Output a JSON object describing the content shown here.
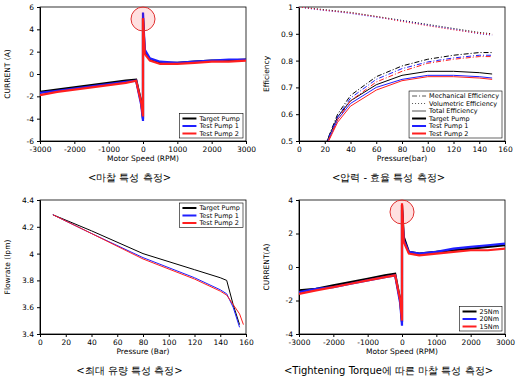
{
  "chart_data": [
    {
      "type": "line",
      "title": "<마찰 특성 측정>",
      "x_label": "Motor Speed (RPM)",
      "y_label": "CURRENT (A)",
      "x": [
        -3000,
        -2500,
        -2000,
        -1500,
        -1000,
        -500,
        -200,
        -50,
        0,
        0,
        50,
        200,
        500,
        1000,
        1500,
        2000,
        2500,
        3000
      ],
      "series": [
        {
          "name": "Target Pump",
          "color": "#000000",
          "values": [
            -1.6,
            -1.4,
            -1.2,
            -1.0,
            -0.8,
            -0.6,
            -0.5,
            -2.5,
            -4.0,
            5.0,
            2.0,
            1.3,
            1.0,
            1.0,
            1.1,
            1.2,
            1.2,
            1.3
          ]
        },
        {
          "name": "Test Pump 1",
          "color": "#1f1fff",
          "values": [
            -1.7,
            -1.5,
            -1.3,
            -1.1,
            -0.9,
            -0.7,
            -0.6,
            -2.8,
            -4.2,
            5.5,
            2.2,
            1.4,
            1.1,
            1.0,
            1.1,
            1.2,
            1.3,
            1.3
          ]
        },
        {
          "name": "Test Pump 2",
          "color": "#ff1f1f",
          "values": [
            -1.9,
            -1.6,
            -1.4,
            -1.2,
            -1.0,
            -0.8,
            -0.6,
            -2.6,
            -3.8,
            5.0,
            1.8,
            1.2,
            0.9,
            0.9,
            1.0,
            1.1,
            1.1,
            1.2
          ]
        }
      ],
      "xlim": [
        -3000,
        3000
      ],
      "xticks": [
        -3000,
        -2000,
        -1000,
        0,
        1000,
        2000,
        3000
      ],
      "ylim": [
        -6,
        6
      ],
      "yticks": [
        -6,
        -4,
        -2,
        0,
        2,
        4,
        6
      ],
      "grid": false,
      "legend": "lower right"
    },
    {
      "type": "line",
      "title": "<압력 - 효율 특성 측정>",
      "x_label": "Pressure(bar)",
      "y_label": "Efficiency",
      "x": [
        0,
        10,
        20,
        30,
        40,
        60,
        80,
        100,
        120,
        140,
        150
      ],
      "efficiencies": [
        {
          "name": "Mechanical Efficiency",
          "line_style": "dashdot"
        },
        {
          "name": "Volumetric Efficiency",
          "line_style": "dotted"
        },
        {
          "name": "Total Efficiency",
          "line_style": "solid"
        }
      ],
      "series": [
        {
          "name": "Target Pump",
          "color": "#000000",
          "values": [
            [
              null,
              null,
              0.48,
              0.6,
              0.67,
              0.74,
              0.78,
              0.805,
              0.82,
              0.83,
              0.83
            ],
            [
              1.0,
              0.995,
              0.99,
              0.985,
              0.98,
              0.965,
              0.95,
              0.935,
              0.92,
              0.905,
              0.9
            ],
            [
              null,
              null,
              0.48,
              0.59,
              0.65,
              0.71,
              0.745,
              0.76,
              0.76,
              0.755,
              0.75
            ]
          ]
        },
        {
          "name": "Test Pump 1",
          "color": "#1f1fff",
          "values": [
            [
              null,
              null,
              0.48,
              0.59,
              0.66,
              0.73,
              0.77,
              0.795,
              0.81,
              0.82,
              0.82
            ],
            [
              1.0,
              0.993,
              0.987,
              0.982,
              0.976,
              0.962,
              0.948,
              0.932,
              0.917,
              0.9,
              0.895
            ],
            [
              null,
              null,
              0.47,
              0.58,
              0.64,
              0.7,
              0.73,
              0.745,
              0.745,
              0.74,
              0.735
            ]
          ]
        },
        {
          "name": "Test Pump 2",
          "color": "#ff1f1f",
          "values": [
            [
              null,
              null,
              0.47,
              0.58,
              0.65,
              0.72,
              0.76,
              0.79,
              0.805,
              0.815,
              0.815
            ],
            [
              1.0,
              0.994,
              0.988,
              0.983,
              0.978,
              0.964,
              0.946,
              0.93,
              0.915,
              0.902,
              0.897
            ],
            [
              null,
              null,
              0.47,
              0.57,
              0.63,
              0.69,
              0.725,
              0.74,
              0.74,
              0.735,
              0.73
            ]
          ]
        }
      ],
      "xlim": [
        0,
        160
      ],
      "xticks": [
        0,
        20,
        40,
        60,
        80,
        100,
        120,
        140,
        160
      ],
      "ylim": [
        0.5,
        1
      ],
      "yticks": [
        0.5,
        0.6,
        0.7,
        0.8,
        0.9,
        1
      ],
      "grid": false,
      "legend": "lower right"
    },
    {
      "type": "line",
      "title": "<최대 유량 특성 측정>",
      "x_label": "Pressure (Bar)",
      "y_label": "Flowrate (lpm)",
      "x": [
        10,
        40,
        80,
        120,
        140,
        145,
        150,
        155,
        158
      ],
      "series": [
        {
          "name": "Target Pump",
          "color": "#000000",
          "values": [
            4.29,
            4.17,
            4.0,
            3.88,
            3.82,
            3.8,
            3.62,
            3.47,
            null
          ]
        },
        {
          "name": "Test Pump 1",
          "color": "#1f1fff",
          "values": [
            4.29,
            4.15,
            3.97,
            3.82,
            3.73,
            3.7,
            3.6,
            3.45,
            null
          ]
        },
        {
          "name": "Test Pump 2",
          "color": "#ff1f1f",
          "values": [
            4.29,
            4.15,
            3.96,
            3.81,
            3.72,
            3.69,
            3.62,
            3.55,
            3.47
          ]
        }
      ],
      "xlim": [
        0,
        160
      ],
      "xticks": [
        0,
        20,
        40,
        60,
        80,
        100,
        120,
        140,
        160
      ],
      "ylim": [
        3.4,
        4.4
      ],
      "yticks": [
        3.4,
        3.6,
        3.8,
        4,
        4.2,
        4.4
      ],
      "grid": false,
      "legend": "upper right"
    },
    {
      "type": "line",
      "title": "<Tightening Torque에 따른 마찰 특성 측정>",
      "x_label": "Motor Speed (RPM)",
      "y_label": "CURRENT(A)",
      "x": [
        -3000,
        -2500,
        -2000,
        -1500,
        -1000,
        -500,
        -200,
        -50,
        0,
        0,
        50,
        200,
        500,
        1000,
        1500,
        2000,
        2500,
        3000
      ],
      "series": [
        {
          "name": "25Nm",
          "color": "#000000",
          "values": [
            -1.4,
            -1.3,
            -1.1,
            -0.9,
            -0.7,
            -0.5,
            -0.4,
            -2.0,
            -3.3,
            3.7,
            1.8,
            0.9,
            0.8,
            0.9,
            1.0,
            1.1,
            1.2,
            1.3
          ]
        },
        {
          "name": "20Nm",
          "color": "#1f1fff",
          "values": [
            -1.5,
            -1.3,
            -1.2,
            -1.0,
            -0.8,
            -0.6,
            -0.5,
            -2.2,
            -3.5,
            3.4,
            1.6,
            0.9,
            0.8,
            0.9,
            1.1,
            1.2,
            1.3,
            1.4
          ]
        },
        {
          "name": "15Nm",
          "color": "#ff1f1f",
          "values": [
            -1.6,
            -1.4,
            -1.2,
            -1.0,
            -0.8,
            -0.6,
            -0.5,
            -2.0,
            -3.2,
            3.8,
            1.5,
            0.8,
            0.7,
            0.8,
            0.9,
            1.0,
            1.0,
            1.1
          ]
        }
      ],
      "xlim": [
        -3000,
        3000
      ],
      "xticks": [
        -3000,
        -2000,
        -1000,
        0,
        1000,
        2000,
        3000
      ],
      "ylim": [
        -4,
        4
      ],
      "yticks": [
        -4,
        -2,
        0,
        2,
        4
      ],
      "grid": false,
      "legend": "lower right"
    }
  ]
}
